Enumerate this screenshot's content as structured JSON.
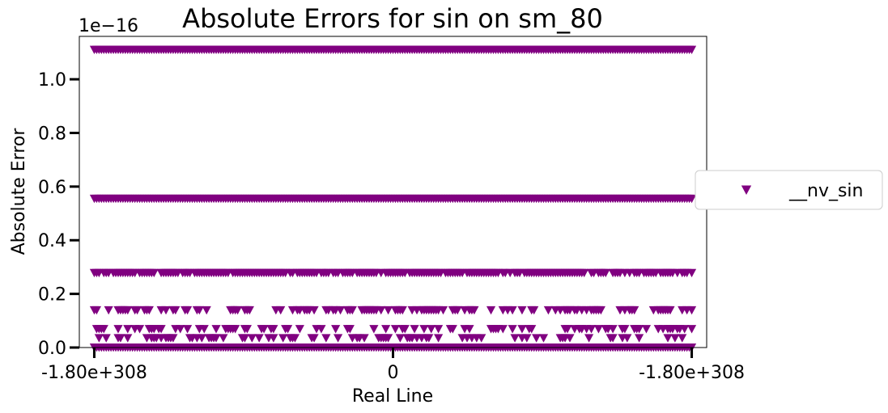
{
  "chart_data": {
    "type": "scatter",
    "title": "Absolute Errors for sin on sm_80",
    "xlabel": "Real Line",
    "ylabel": "Absolute Error",
    "y_offset_text": "1e−16",
    "x_tick_labels": [
      "-1.80e+308",
      "0",
      "-1.80e+308"
    ],
    "xlim": [
      -1.05,
      1.05
    ],
    "ylim": [
      0,
      1.16
    ],
    "y_ticks": [
      0.0,
      0.2,
      0.4,
      0.6,
      0.8,
      1.0
    ],
    "y_tick_labels": [
      "0.0",
      "0.2",
      "0.4",
      "0.6",
      "0.8",
      "1.0"
    ],
    "grid": false,
    "legend_position": "outside-right",
    "series": [
      {
        "name": "__nv_sin",
        "color": "#800080",
        "marker": "triangle-down",
        "levels": [
          {
            "y": 1.11,
            "density": 1.0
          },
          {
            "y": 0.555,
            "density": 1.0
          },
          {
            "y": 0.278,
            "density": 0.85
          },
          {
            "y": 0.139,
            "density": 0.45
          },
          {
            "y": 0.069,
            "density": 0.35
          },
          {
            "y": 0.035,
            "density": 0.3
          },
          {
            "y": 0.0,
            "density": 1.0
          }
        ]
      }
    ]
  }
}
